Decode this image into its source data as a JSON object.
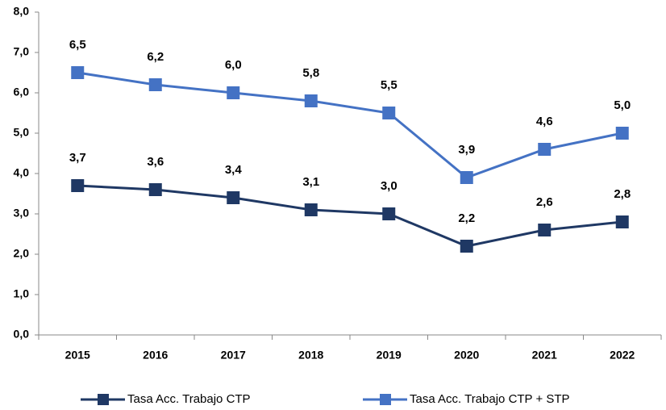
{
  "chart_data": {
    "type": "line",
    "categories": [
      "2015",
      "2016",
      "2017",
      "2018",
      "2019",
      "2020",
      "2021",
      "2022"
    ],
    "series": [
      {
        "name": "Tasa Acc. Trabajo CTP",
        "color": "#1f3864",
        "values": [
          3.7,
          3.6,
          3.4,
          3.1,
          3.0,
          2.2,
          2.6,
          2.8
        ],
        "value_labels": [
          "3,7",
          "3,6",
          "3,4",
          "3,1",
          "3,0",
          "2,2",
          "2,6",
          "2,8"
        ]
      },
      {
        "name": "Tasa Acc. Trabajo CTP + STP",
        "color": "#4472c4",
        "values": [
          6.5,
          6.2,
          6.0,
          5.8,
          5.5,
          3.9,
          4.6,
          5.0
        ],
        "value_labels": [
          "6,5",
          "6,2",
          "6,0",
          "5,8",
          "5,5",
          "3,9",
          "4,6",
          "5,0"
        ]
      }
    ],
    "ylim": [
      0,
      8
    ],
    "yticks": [
      {
        "value": 0,
        "label": "0,0"
      },
      {
        "value": 1,
        "label": "1,0"
      },
      {
        "value": 2,
        "label": "2,0"
      },
      {
        "value": 3,
        "label": "3,0"
      },
      {
        "value": 4,
        "label": "4,0"
      },
      {
        "value": 5,
        "label": "5,0"
      },
      {
        "value": 6,
        "label": "6,0"
      },
      {
        "value": 7,
        "label": "7,0"
      },
      {
        "value": 8,
        "label": "8,0"
      }
    ],
    "grid": false,
    "legend": "bottom"
  }
}
